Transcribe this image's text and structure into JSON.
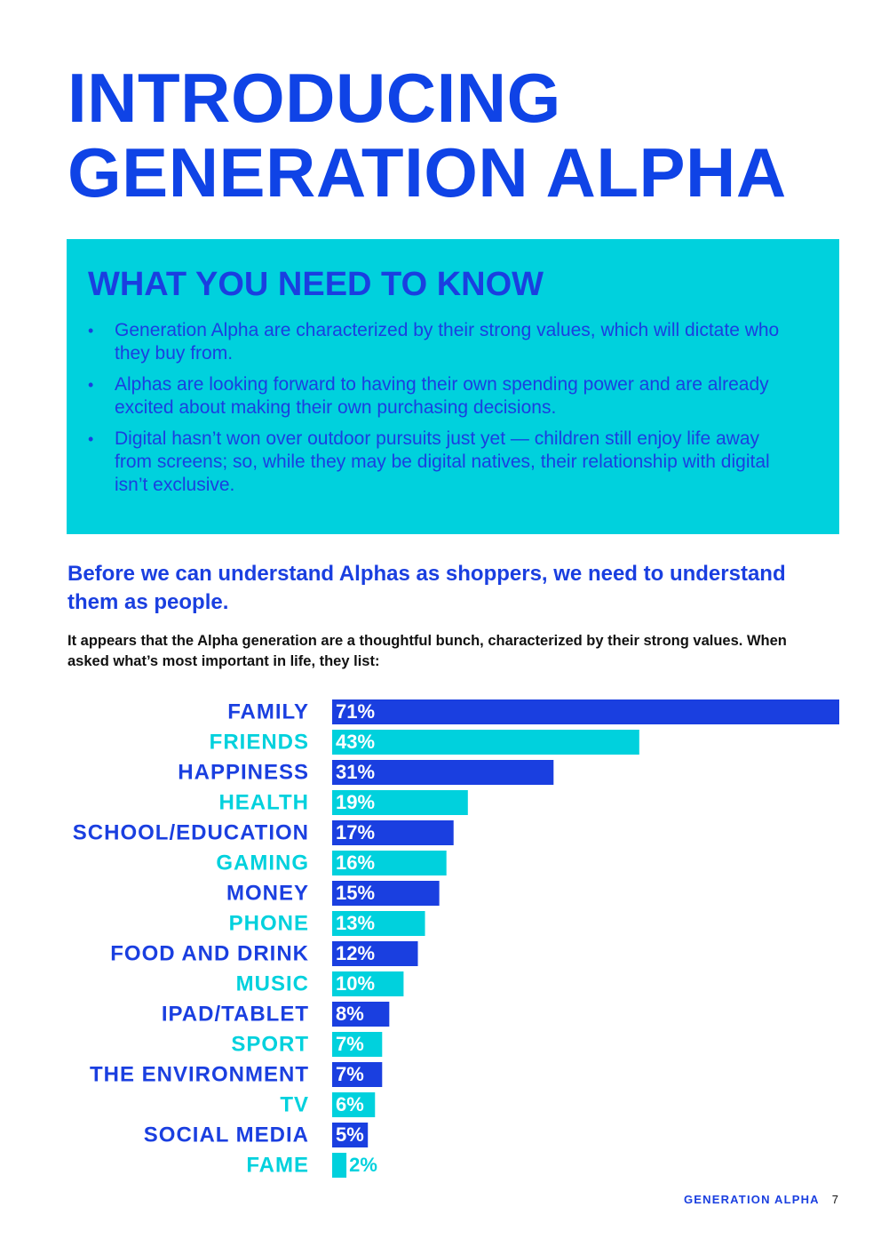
{
  "title": {
    "line1": "INTRODUCING",
    "line2": "GENERATION ALPHA"
  },
  "panel": {
    "heading": "WHAT YOU NEED TO KNOW",
    "bullet_glyph": "•",
    "bullets": [
      "Generation Alpha are characterized by their strong values, which will dictate who they buy from.",
      "Alphas are looking forward to having their own spending power and are already excited about making their own purchasing decisions.",
      "Digital hasn’t won over outdoor pursuits just yet — children still enjoy life away from screens; so, while they may be digital natives, their relationship with digital isn’t exclusive."
    ]
  },
  "lead": "Before we can understand Alphas as shoppers, we need to understand them as people.",
  "subtext": "It appears that the Alpha generation are a thoughtful bunch, characterized by their strong values. When asked what’s most important in life, they list:",
  "chart_data": {
    "type": "bar",
    "orientation": "horizontal",
    "categories": [
      "FAMILY",
      "FRIENDS",
      "HAPPINESS",
      "HEALTH",
      "SCHOOL/EDUCATION",
      "GAMING",
      "MONEY",
      "PHONE",
      "FOOD AND DRINK",
      "MUSIC",
      "IPAD/TABLET",
      "SPORT",
      "THE ENVIRONMENT",
      "TV",
      "SOCIAL MEDIA",
      "FAME"
    ],
    "values": [
      71,
      43,
      31,
      19,
      17,
      16,
      15,
      13,
      12,
      10,
      8,
      7,
      7,
      6,
      5,
      2
    ],
    "value_labels": [
      "71%",
      "43%",
      "31%",
      "19%",
      "17%",
      "16%",
      "15%",
      "13%",
      "12%",
      "10%",
      "8%",
      "7%",
      "7%",
      "6%",
      "5%",
      "2%"
    ],
    "unit": "%",
    "xlim": [
      0,
      71
    ],
    "colors": [
      "#1a3fe0",
      "#00d1dd"
    ],
    "grid": false,
    "legend": "none"
  },
  "footer": {
    "label": "GENERATION ALPHA",
    "page": "7"
  },
  "colors": {
    "primary": "#1a3fe0",
    "title": "#0f43e6",
    "accent": "#00d1dd"
  }
}
